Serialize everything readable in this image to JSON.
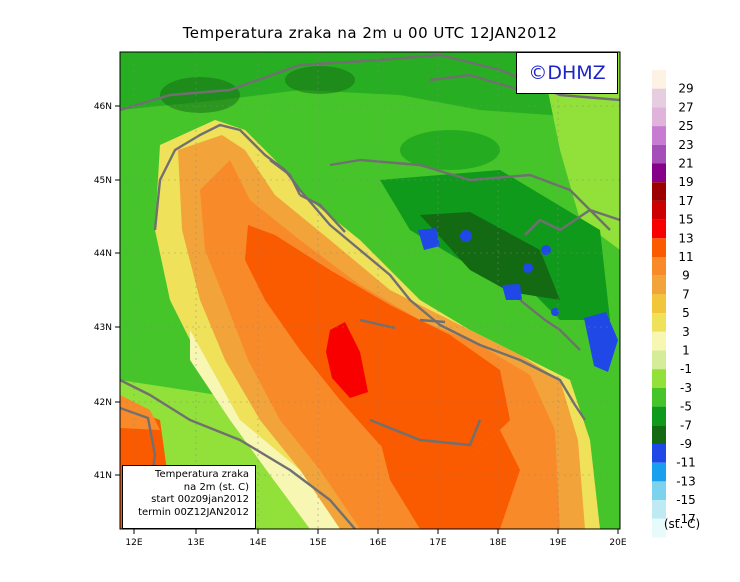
{
  "title": "Temperatura zraka na 2m u 00 UTC 12JAN2012",
  "logo_text": "©DHMZ",
  "info_box": {
    "line1": "Temperatura zraka",
    "line2": "na 2m (st. C)",
    "line3": "start 00z09jan2012",
    "line4": "termin 00Z12JAN2012"
  },
  "axes": {
    "lon_ticks": [
      "12E",
      "13E",
      "14E",
      "15E",
      "16E",
      "17E",
      "18E",
      "19E",
      "20E"
    ],
    "lat_ticks": [
      "41N",
      "42N",
      "43N",
      "44N",
      "45N",
      "46N"
    ]
  },
  "colorbar": {
    "unit": "(st. C)",
    "labels": [
      "29",
      "27",
      "25",
      "23",
      "21",
      "19",
      "17",
      "15",
      "13",
      "11",
      "9",
      "7",
      "5",
      "3",
      "1",
      "-1",
      "-3",
      "-5",
      "-7",
      "-9",
      "-11",
      "-13",
      "-15",
      "-17"
    ],
    "colors": [
      "#fdf2e4",
      "#e6cde0",
      "#dfb3da",
      "#c77cd1",
      "#a64eb8",
      "#860089",
      "#9c0000",
      "#cc0000",
      "#f80000",
      "#fa5a00",
      "#f98a2a",
      "#f2a43b",
      "#f1c63a",
      "#efe25a",
      "#f7f6b2",
      "#d5ed9b",
      "#92e03a",
      "#45c52a",
      "#0f9a1b",
      "#136a12",
      "#2048e6",
      "#18a0ee",
      "#7dd3ed",
      "#bfeaf3",
      "#e8fbfb"
    ]
  },
  "colors": {
    "coastline": "#707070",
    "sea_warm": "#fa5a00",
    "land": "#45c52a"
  }
}
